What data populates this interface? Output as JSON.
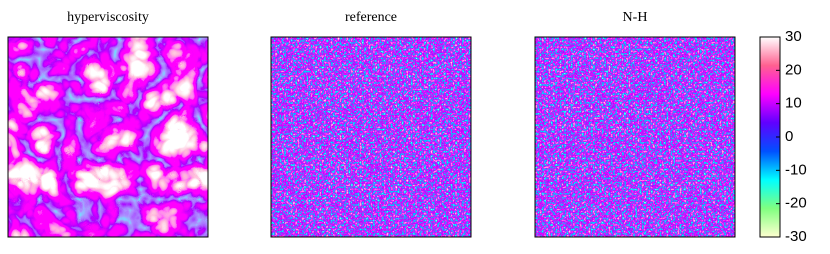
{
  "chart_data": [
    {
      "type": "heatmap",
      "title": "hyperviscosity"
    },
    {
      "type": "heatmap",
      "title": "reference"
    },
    {
      "type": "heatmap",
      "title": "N-H"
    },
    {
      "type": "colorbar",
      "ylim": [
        -30,
        30
      ],
      "yticks": [
        30,
        20,
        10,
        0,
        -10,
        -20,
        -30
      ],
      "colormap": [
        "#ffffd0",
        "#80ff80",
        "#00ffff",
        "#0050ff",
        "#6000ff",
        "#ff00ff",
        "#ff6090",
        "#ffffff"
      ]
    }
  ]
}
